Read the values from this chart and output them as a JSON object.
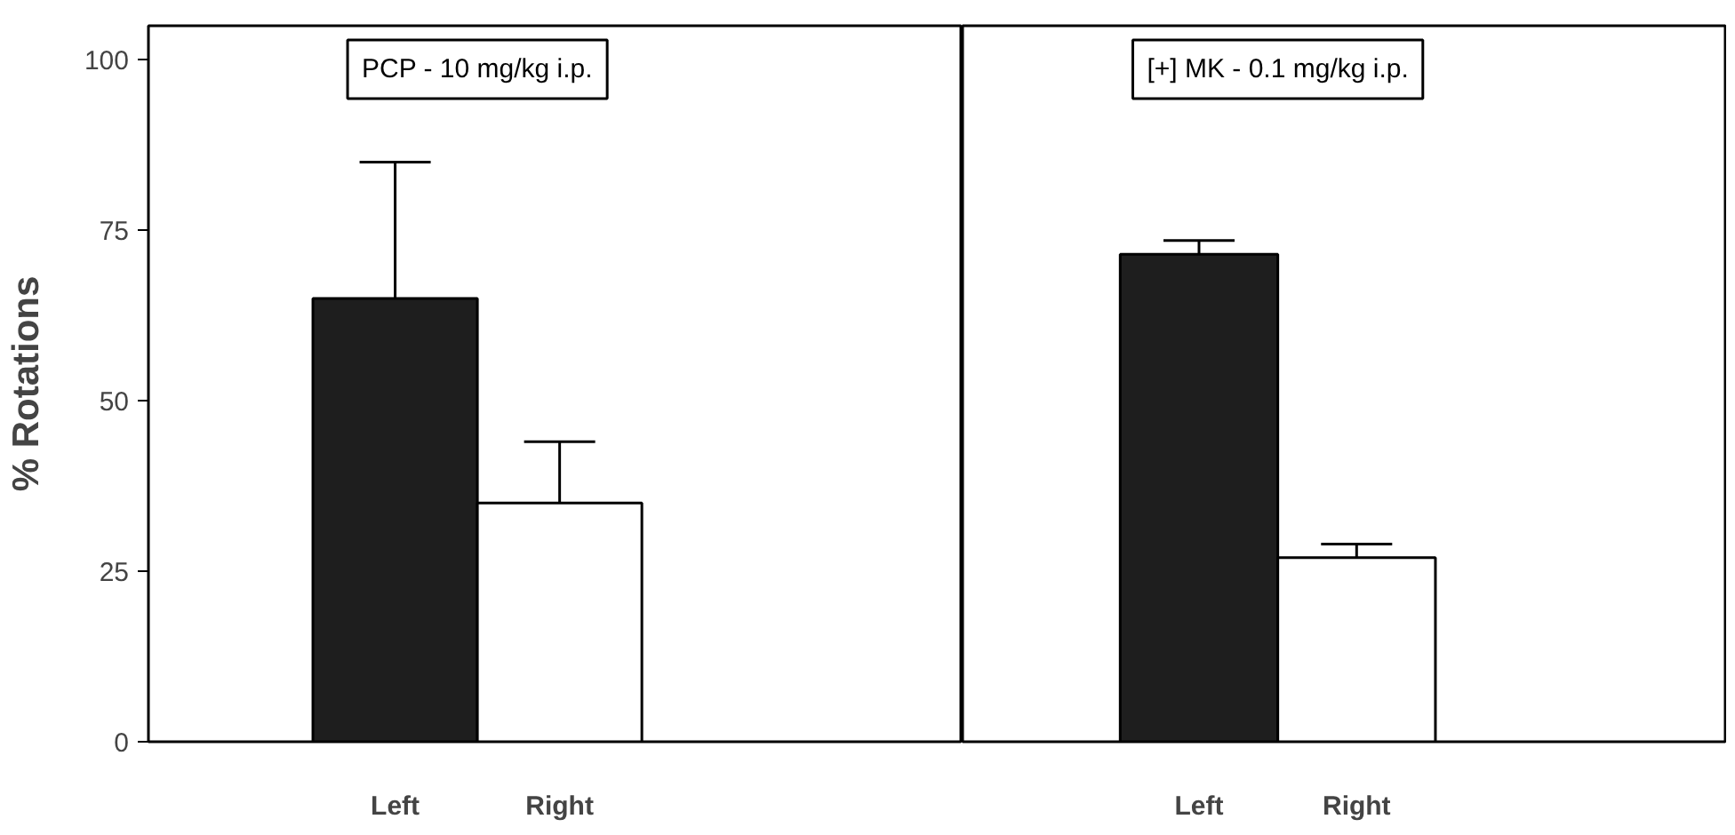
{
  "chart_data": [
    {
      "type": "bar",
      "title": "PCP - 10 mg/kg i.p.",
      "ylabel": "% Rotations",
      "categories": [
        "Left",
        "Right"
      ],
      "values": [
        65,
        35
      ],
      "colors": [
        "#1e1e1e",
        "#ffffff"
      ],
      "errors": [
        [
          65,
          85
        ],
        [
          35,
          44
        ]
      ],
      "ylim": [
        0,
        105
      ],
      "yticks": [
        0,
        25,
        50,
        75,
        100
      ],
      "grid": false
    },
    {
      "type": "bar",
      "title": "[+] MK - 0.1 mg/kg i.p.",
      "categories": [
        "Left",
        "Right"
      ],
      "values": [
        71.5,
        27
      ],
      "colors": [
        "#1e1e1e",
        "#ffffff"
      ],
      "errors": [
        [
          71.5,
          73.5
        ],
        [
          27,
          29
        ]
      ],
      "ylim": [
        0,
        105
      ],
      "tick_labels": "x",
      "grid": false
    }
  ]
}
